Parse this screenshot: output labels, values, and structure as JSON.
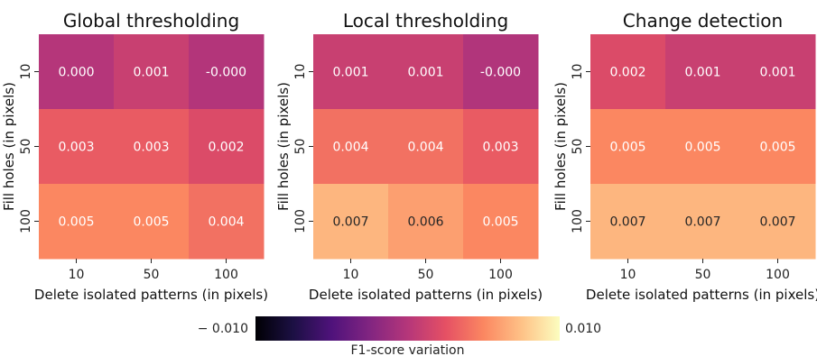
{
  "chart_data": [
    {
      "type": "heatmap",
      "title": "Global thresholding",
      "xlabel": "Delete isolated patterns (in pixels)",
      "ylabel": "Fill holes (in pixels)",
      "x_categories": [
        "10",
        "50",
        "100"
      ],
      "y_categories": [
        "10",
        "50",
        "100"
      ],
      "values": [
        [
          0.0,
          0.001,
          -0.0001
        ],
        [
          0.003,
          0.003,
          0.002
        ],
        [
          0.005,
          0.005,
          0.004
        ]
      ],
      "labels": [
        [
          "0.000",
          "0.001",
          "-0.000"
        ],
        [
          "0.003",
          "0.003",
          "0.002"
        ],
        [
          "0.005",
          "0.005",
          "0.004"
        ]
      ]
    },
    {
      "type": "heatmap",
      "title": "Local thresholding",
      "xlabel": "Delete isolated patterns (in pixels)",
      "ylabel": "Fill holes (in pixels)",
      "x_categories": [
        "10",
        "50",
        "100"
      ],
      "y_categories": [
        "10",
        "50",
        "100"
      ],
      "values": [
        [
          0.001,
          0.001,
          -0.0002
        ],
        [
          0.004,
          0.004,
          0.003
        ],
        [
          0.007,
          0.006,
          0.005
        ]
      ],
      "labels": [
        [
          "0.001",
          "0.001",
          "-0.000"
        ],
        [
          "0.004",
          "0.004",
          "0.003"
        ],
        [
          "0.007",
          "0.006",
          "0.005"
        ]
      ]
    },
    {
      "type": "heatmap",
      "title": "Change detection",
      "xlabel": "Delete isolated patterns (in pixels)",
      "ylabel": "Fill holes (in pixels)",
      "x_categories": [
        "10",
        "50",
        "100"
      ],
      "y_categories": [
        "10",
        "50",
        "100"
      ],
      "values": [
        [
          0.002,
          0.001,
          0.001
        ],
        [
          0.005,
          0.005,
          0.005
        ],
        [
          0.007,
          0.007,
          0.007
        ]
      ],
      "labels": [
        [
          "0.002",
          "0.001",
          "0.001"
        ],
        [
          "0.005",
          "0.005",
          "0.005"
        ],
        [
          "0.007",
          "0.007",
          "0.007"
        ]
      ]
    }
  ],
  "colorbar": {
    "colormap": "magma",
    "vmin": -0.01,
    "vmax": 0.01,
    "min_label": "− 0.010",
    "max_label": "0.010",
    "label": "F1-score variation"
  }
}
